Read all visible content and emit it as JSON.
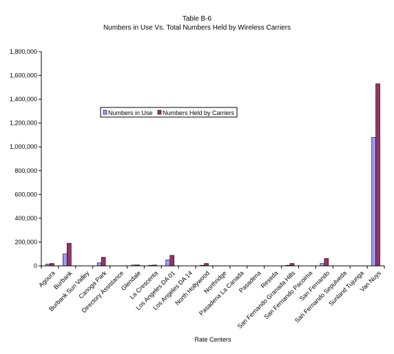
{
  "chart_data": {
    "type": "bar",
    "title": "Table B-6",
    "subtitle": "Numbers in Use Vs. Total Numbers Held by Wireless Carriers",
    "xlabel": "Rate Centers",
    "ylabel": "",
    "ylim": [
      0,
      1800000
    ],
    "yticks": [
      0,
      200000,
      400000,
      600000,
      800000,
      1000000,
      1200000,
      1400000,
      1600000,
      1800000
    ],
    "ytick_labels": [
      "0",
      "200,000",
      "400,000",
      "600,000",
      "800,000",
      "1,000,000",
      "1,200,000",
      "1,400,000",
      "1,600,000",
      "1,800,000"
    ],
    "grid": false,
    "legend_position": "center-left",
    "categories": [
      "Agoura",
      "Burbank",
      "Burbank Sun Valley",
      "Canoga Park",
      "Directory Assistance",
      "Glendale",
      "La Crescenta",
      "Los Angeles DA 01",
      "Los Angeles DA 14",
      "North Hollywood",
      "Northridge",
      "Pasadena La Canada",
      "Pasadena",
      "Reseda",
      "San Fernando Granada Hills",
      "San Fernando Pacoima",
      "San Fernando",
      "San Fernando Sepulveda",
      "Sunland Tujunga",
      "Van Nuys"
    ],
    "series": [
      {
        "name": "Numbers in Use",
        "color": "#9999ff",
        "values": [
          15000,
          100000,
          0,
          25000,
          0,
          7000,
          5000,
          50000,
          0,
          5000,
          0,
          0,
          0,
          0,
          5000,
          0,
          20000,
          0,
          0,
          1080000
        ]
      },
      {
        "name": "Numbers Held by Carriers",
        "color": "#993366",
        "values": [
          20000,
          190000,
          0,
          72000,
          0,
          8000,
          7000,
          88000,
          0,
          20000,
          0,
          0,
          0,
          0,
          20000,
          0,
          62000,
          0,
          0,
          1530000
        ]
      }
    ]
  }
}
